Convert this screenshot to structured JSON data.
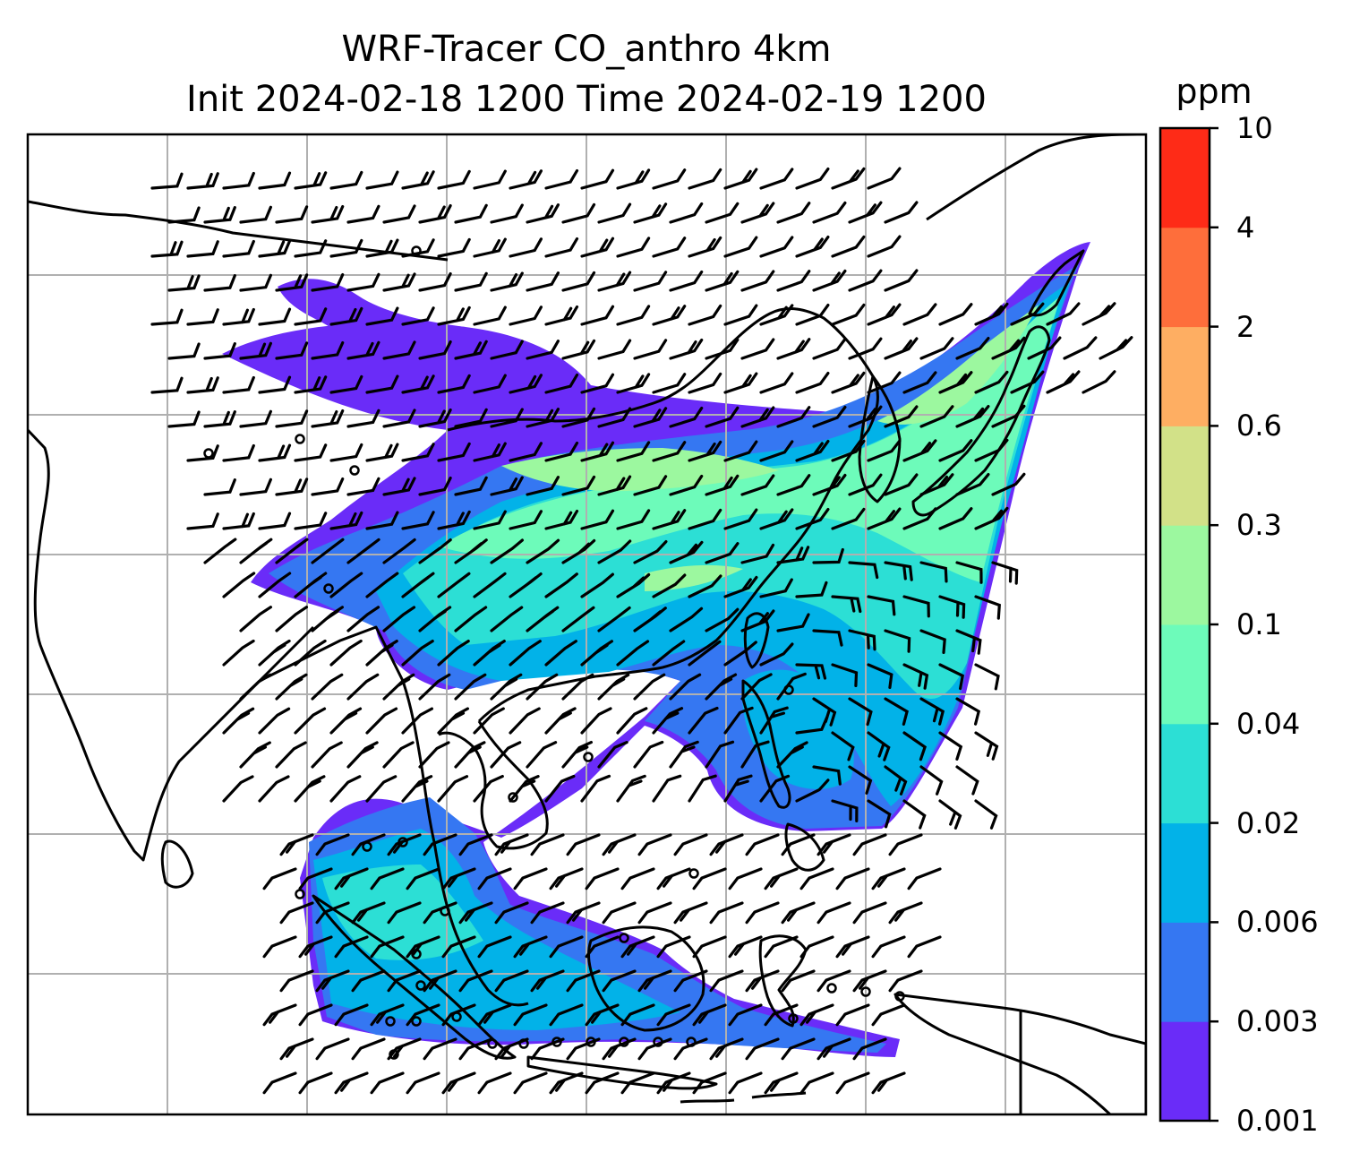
{
  "title_line1": "WRF-Tracer CO_anthro 4km",
  "title_line2": "Init 2024-02-18 1200 Time 2024-02-19 1200",
  "colorbar": {
    "unit": "ppm",
    "levels": [
      "0.001",
      "0.003",
      "0.006",
      "0.02",
      "0.04",
      "0.1",
      "0.3",
      "0.6",
      "2",
      "4",
      "10"
    ],
    "colors": [
      "#6a2cf8",
      "#3577f2",
      "#02b2e8",
      "#2cdfd5",
      "#6dfbba",
      "#9cf89f",
      "#d2e188",
      "#feae62",
      "#fe6e3b",
      "#fe2b17"
    ]
  },
  "map": {
    "background": "#ffffff",
    "gridline_color": "#b0b0b0",
    "coastline_color": "#000000",
    "wind_barbs": "black"
  }
}
